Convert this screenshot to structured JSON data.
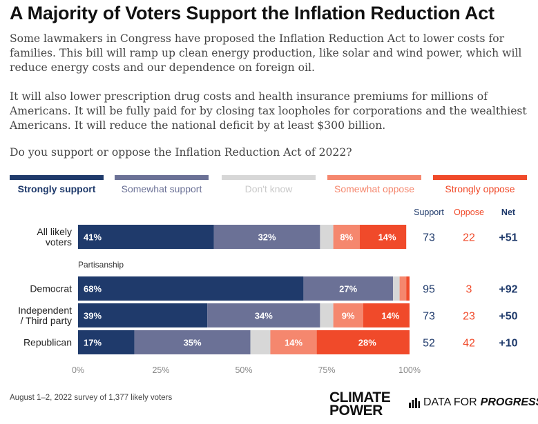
{
  "header": {
    "title": "A Majority of Voters Support the Inflation Reduction Act",
    "paragraph1": "Some lawmakers in Congress have proposed the Inflation Reduction Act to lower costs for families. This bill will ramp up clean energy production, like solar and wind power, which will reduce energy costs and our dependence on foreign oil.",
    "paragraph2": "It will also lower prescription drug costs and health insurance premiums for millions of Americans. It will be fully paid for by closing tax loopholes for corporations and the wealthiest Americans. It will reduce the national deficit by at least $300 billion.",
    "question": "Do you support or oppose the Inflation Reduction Act of 2022?"
  },
  "chart_data": {
    "type": "bar",
    "orientation": "horizontal",
    "stacked": true,
    "categories": [
      "All likely voters",
      "Democrat",
      "Independent / Third party",
      "Republican"
    ],
    "group_label": "Partisanship",
    "series": [
      {
        "name": "Strongly support",
        "color": "#1f3a6b",
        "values": [
          41,
          68,
          39,
          17
        ],
        "labels": [
          "41%",
          "68%",
          "39%",
          "17%"
        ]
      },
      {
        "name": "Somewhat support",
        "color": "#6b7196",
        "values": [
          32,
          27,
          34,
          35
        ],
        "labels": [
          "32%",
          "27%",
          "34%",
          "35%"
        ]
      },
      {
        "name": "Don't know",
        "color": "#d7d7d7",
        "values": [
          4,
          2,
          4,
          6
        ],
        "labels": [
          "",
          "",
          "",
          ""
        ]
      },
      {
        "name": "Somewhat oppose",
        "color": "#f5876e",
        "values": [
          8,
          2,
          9,
          14
        ],
        "labels": [
          "8%",
          "",
          "9%",
          "14%"
        ]
      },
      {
        "name": "Strongly oppose",
        "color": "#f04a2a",
        "values": [
          14,
          1,
          14,
          28
        ],
        "labels": [
          "14%",
          "",
          "14%",
          "28%"
        ]
      }
    ],
    "summary_headers": [
      "Support",
      "Oppose",
      "Net"
    ],
    "summary": [
      {
        "support": "73",
        "oppose": "22",
        "net": "+51"
      },
      {
        "support": "95",
        "oppose": "3",
        "net": "+92"
      },
      {
        "support": "73",
        "oppose": "23",
        "net": "+50"
      },
      {
        "support": "52",
        "oppose": "42",
        "net": "+10"
      }
    ],
    "xticks": [
      "0%",
      "25%",
      "50%",
      "75%",
      "100%"
    ],
    "xlim": [
      0,
      100
    ],
    "legend_position": "top",
    "colors": {
      "support": "#1f3a6b",
      "oppose": "#f04a2a",
      "net": "#1f3a6b"
    }
  },
  "footer": {
    "note": "August 1–2, 2022 survey of 1,377 likely voters",
    "logo_cp_line1": "CLIMATE",
    "logo_cp_line2": "POWER",
    "logo_dfp_prefix": "DATA FOR",
    "logo_dfp_suffix": "PROGRESS"
  }
}
